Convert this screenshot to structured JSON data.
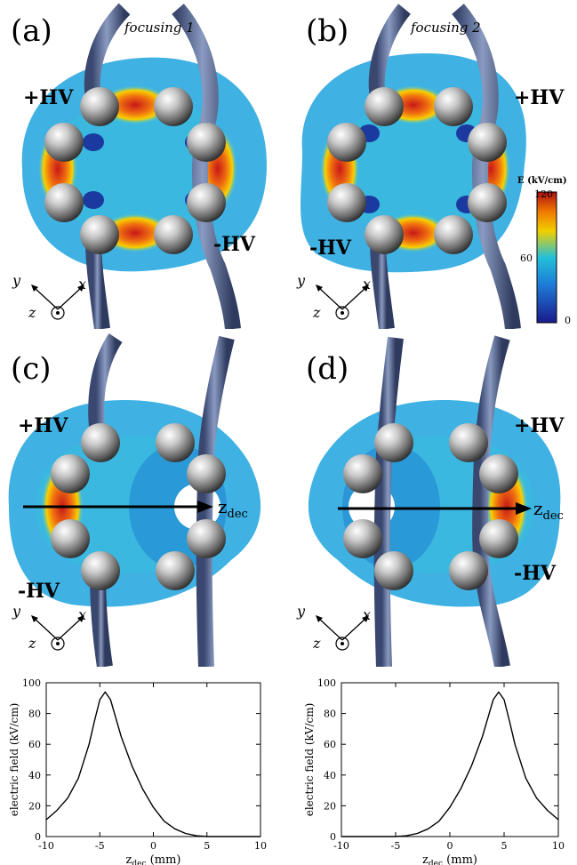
{
  "panels": {
    "a": {
      "label": "(a)",
      "focus": "focusing 1",
      "hv_top": "+HV",
      "hv_bottom": "-HV"
    },
    "b": {
      "label": "(b)",
      "focus": "focusing 2",
      "hv_top": "+HV",
      "hv_bottom": "-HV"
    },
    "c": {
      "label": "(c)",
      "hv_top": "+HV",
      "hv_bottom": "-HV",
      "axis_label": "z",
      "axis_sub": "dec"
    },
    "d": {
      "label": "(d)",
      "hv_top": "+HV",
      "hv_bottom": "-HV",
      "axis_label": "z",
      "axis_sub": "dec"
    }
  },
  "coord_labels": {
    "y": "y",
    "x": "x",
    "z": "z"
  },
  "colorbar": {
    "title": "E (kV/cm)",
    "ticks": [
      "120",
      "60",
      "0"
    ],
    "colors": [
      "#1a1a8c",
      "#1e7fd8",
      "#23c0d8",
      "#f0d000",
      "#f07800",
      "#b01010"
    ]
  },
  "colors": {
    "rod": "#5a6a90",
    "sphere": "#9a9a9a",
    "low_field": "#2aa8e0",
    "high_field": "#d82020"
  },
  "chart_data": [
    {
      "type": "line",
      "xlabel": "z",
      "xlabel_sub": "dec",
      "xlabel_unit": "(mm)",
      "ylabel": "electric field (kV/cm)",
      "xlim": [
        -10,
        10
      ],
      "ylim": [
        0,
        100
      ],
      "xticks": [
        -10,
        -5,
        0,
        5,
        10
      ],
      "yticks": [
        0,
        20,
        40,
        60,
        80,
        100
      ],
      "xtick_labels": [
        "-10",
        "-5",
        "0",
        "5",
        "10"
      ],
      "ytick_labels": [
        "0",
        "20",
        "40",
        "60",
        "80",
        "100"
      ],
      "series": [
        {
          "x": [
            -10,
            -9,
            -8,
            -7,
            -6,
            -5.5,
            -5,
            -4.5,
            -4,
            -3.5,
            -3,
            -2,
            -1,
            0,
            1,
            2,
            3,
            4,
            5,
            10
          ],
          "y": [
            11,
            17,
            25,
            38,
            60,
            75,
            89,
            94,
            89,
            77,
            65,
            46,
            31,
            19,
            10,
            5,
            2,
            0.5,
            0,
            0
          ]
        }
      ]
    },
    {
      "type": "line",
      "xlabel": "z",
      "xlabel_sub": "dec",
      "xlabel_unit": "(mm)",
      "ylabel": "electric field (kV/cm)",
      "xlim": [
        -10,
        10
      ],
      "ylim": [
        0,
        100
      ],
      "xticks": [
        -10,
        -5,
        0,
        5,
        10
      ],
      "yticks": [
        0,
        20,
        40,
        60,
        80,
        100
      ],
      "xtick_labels": [
        "-10",
        "-5",
        "0",
        "5",
        "10"
      ],
      "ytick_labels": [
        "0",
        "20",
        "40",
        "60",
        "80",
        "100"
      ],
      "series": [
        {
          "x": [
            -10,
            -5,
            -4,
            -3,
            -2,
            -1,
            0,
            1,
            2,
            3,
            3.5,
            4,
            4.5,
            5,
            5.5,
            6,
            7,
            8,
            9,
            10
          ],
          "y": [
            0,
            0,
            0.5,
            2,
            5,
            10,
            19,
            31,
            46,
            65,
            77,
            89,
            94,
            89,
            75,
            60,
            38,
            25,
            17,
            11
          ]
        }
      ]
    }
  ]
}
